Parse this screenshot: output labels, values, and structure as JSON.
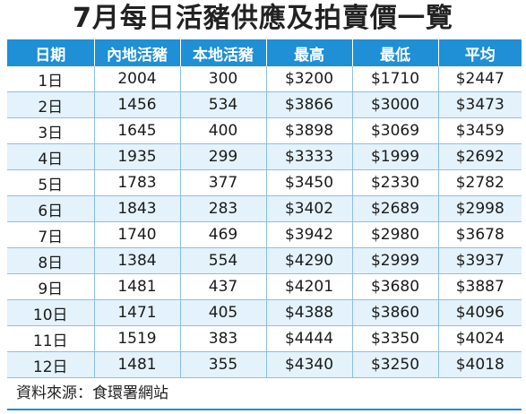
{
  "title": "7月每日活豬供應及拍賣價一覽",
  "columns": [
    "日期",
    "內地活豬",
    "本地活豬",
    "最高",
    "最低",
    "平均"
  ],
  "rows": [
    [
      "1日",
      "2004",
      "300",
      "$3200",
      "$1710",
      "$2447"
    ],
    [
      "2日",
      "1456",
      "534",
      "$3866",
      "$3000",
      "$3473"
    ],
    [
      "3日",
      "1645",
      "400",
      "$3898",
      "$3069",
      "$3459"
    ],
    [
      "4日",
      "1935",
      "299",
      "$3333",
      "$1999",
      "$2692"
    ],
    [
      "5日",
      "1783",
      "377",
      "$3450",
      "$2330",
      "$2782"
    ],
    [
      "6日",
      "1843",
      "283",
      "$3402",
      "$2689",
      "$2998"
    ],
    [
      "7日",
      "1740",
      "469",
      "$3942",
      "$2980",
      "$3678"
    ],
    [
      "8日",
      "1384",
      "554",
      "$4290",
      "$2999",
      "$3937"
    ],
    [
      "9日",
      "1481",
      "437",
      "$4201",
      "$3680",
      "$3887"
    ],
    [
      "10日",
      "1471",
      "405",
      "$4388",
      "$3860",
      "$4096"
    ],
    [
      "11日",
      "1519",
      "383",
      "$4444",
      "$3350",
      "$4024"
    ],
    [
      "12日",
      "1481",
      "355",
      "$4340",
      "$3250",
      "$4018"
    ]
  ],
  "source": "資料來源：食環署網站",
  "colors": {
    "header_bg": "#1f8fd6",
    "header_text": "#ffffff",
    "row_alt_bg": "#e4f2fb"
  }
}
